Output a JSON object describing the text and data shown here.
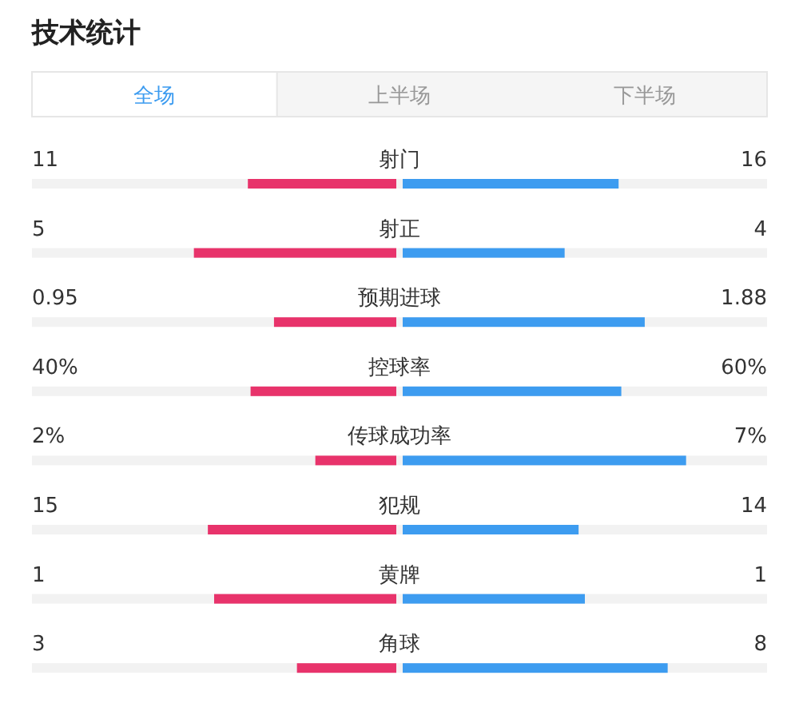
{
  "chart_data": {
    "type": "other",
    "title": "技术统计",
    "annotations": [
      "全场",
      "上半场",
      "下半场"
    ],
    "categories": [
      "射门",
      "射正",
      "预期进球",
      "控球率",
      "传球成功率",
      "犯规",
      "黄牌",
      "角球"
    ],
    "series": [
      {
        "color": "#e8336b",
        "values": [
          11,
          5,
          0.95,
          40,
          2,
          15,
          1,
          3
        ],
        "value_labels": [
          "11",
          "5",
          "0.95",
          "40%",
          "2%",
          "15",
          "1",
          "3"
        ]
      },
      {
        "color": "#3d9cf0",
        "values": [
          16,
          4,
          1.88,
          60,
          7,
          14,
          1,
          8
        ],
        "value_labels": [
          "16",
          "4",
          "1.88",
          "60%",
          "7%",
          "14",
          "1",
          "8"
        ]
      }
    ]
  }
}
